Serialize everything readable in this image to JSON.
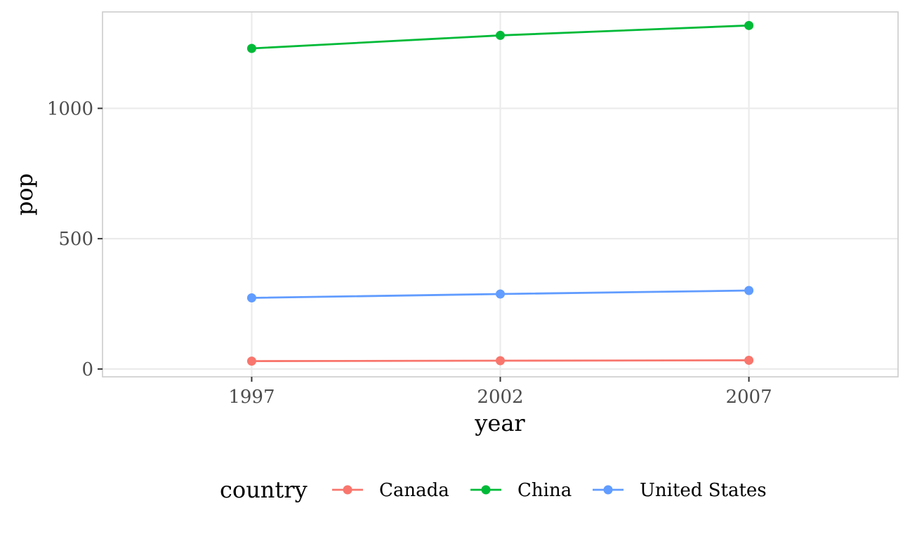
{
  "chart_data": {
    "type": "line",
    "x": [
      1997,
      2002,
      2007
    ],
    "x_tick_labels": [
      "1997",
      "2002",
      "2007"
    ],
    "y_ticks": [
      0,
      500,
      1000
    ],
    "y_tick_labels": [
      "0",
      "500",
      "1000"
    ],
    "xlim": [
      1994,
      2010
    ],
    "ylim": [
      -30,
      1370
    ],
    "xlabel": "year",
    "ylabel": "pop",
    "grid": true,
    "markers": true,
    "legend": {
      "title": "country",
      "position": "bottom"
    },
    "series": [
      {
        "name": "Canada",
        "color": "#F8766D",
        "values": [
          30.3,
          31.9,
          33.4
        ]
      },
      {
        "name": "China",
        "color": "#00BA38",
        "values": [
          1230,
          1280,
          1318
        ]
      },
      {
        "name": "United States",
        "color": "#619CFF",
        "values": [
          272.9,
          287.7,
          301.1
        ]
      }
    ]
  }
}
